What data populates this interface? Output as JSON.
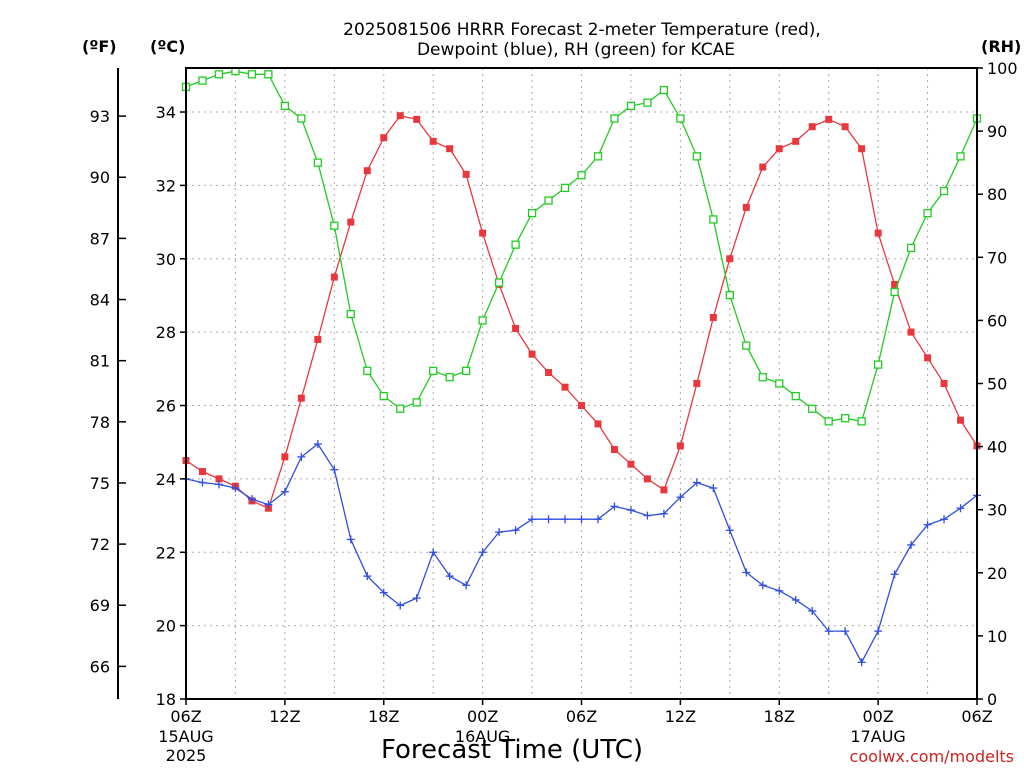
{
  "chart_data": {
    "type": "line",
    "title": [
      "2025081506 HRRR Forecast 2-meter Temperature (red),",
      "Dewpoint (blue), RH (green) for KCAE"
    ],
    "xlabel": "Forecast Time (UTC)",
    "credit": "coolwx.com/modelts",
    "units": {
      "fahrenheit": "(ºF)",
      "celsius": "(ºC)",
      "rh": "(RH)"
    },
    "x_ticks": [
      {
        "hour": 0,
        "label": "06Z",
        "sub": [
          "15AUG",
          "2025"
        ]
      },
      {
        "hour": 6,
        "label": "12Z",
        "sub": []
      },
      {
        "hour": 12,
        "label": "18Z",
        "sub": []
      },
      {
        "hour": 18,
        "label": "00Z",
        "sub": [
          "16AUG"
        ]
      },
      {
        "hour": 24,
        "label": "06Z",
        "sub": []
      },
      {
        "hour": 30,
        "label": "12Z",
        "sub": []
      },
      {
        "hour": 36,
        "label": "18Z",
        "sub": []
      },
      {
        "hour": 42,
        "label": "00Z",
        "sub": [
          "17AUG"
        ]
      },
      {
        "hour": 48,
        "label": "06Z",
        "sub": []
      }
    ],
    "xlim": [
      0,
      48
    ],
    "ylim_c": [
      18,
      35.2
    ],
    "ylim_rh": [
      0,
      100
    ],
    "celsius_ticks": [
      18,
      20,
      22,
      24,
      26,
      28,
      30,
      32,
      34
    ],
    "fahrenheit_ticks": [
      66,
      69,
      72,
      75,
      78,
      81,
      84,
      87,
      90,
      93
    ],
    "rh_ticks": [
      0,
      10,
      20,
      30,
      40,
      50,
      60,
      70,
      80,
      90,
      100
    ],
    "colors": {
      "temperature": "#e8383d",
      "dewpoint": "#2f4fe0",
      "rh": "#22cc22"
    },
    "series": [
      {
        "name": "Temperature",
        "unit": "C",
        "values": [
          24.5,
          24.2,
          24.0,
          23.8,
          23.4,
          23.2,
          24.6,
          26.2,
          27.8,
          29.5,
          31.0,
          32.4,
          33.3,
          33.9,
          33.8,
          33.2,
          33.0,
          32.3,
          30.7,
          29.3,
          28.1,
          27.4,
          26.9,
          26.5,
          26.0,
          25.5,
          24.8,
          24.4,
          24.0,
          23.7,
          24.9,
          26.6,
          28.4,
          30.0,
          31.4,
          32.5,
          33.0,
          33.2,
          33.6,
          33.8,
          33.6,
          33.0,
          30.7,
          29.3,
          28.0,
          27.3,
          26.6,
          25.6,
          24.9
        ]
      },
      {
        "name": "Dewpoint",
        "unit": "C",
        "values": [
          24.0,
          23.9,
          23.85,
          23.75,
          23.45,
          23.3,
          23.65,
          24.6,
          24.95,
          24.25,
          22.35,
          21.35,
          20.9,
          20.55,
          20.75,
          22.0,
          21.35,
          21.1,
          22.0,
          22.55,
          22.6,
          22.9,
          22.9,
          22.9,
          22.9,
          22.9,
          23.25,
          23.15,
          23.0,
          23.05,
          23.5,
          23.9,
          23.75,
          22.6,
          21.45,
          21.1,
          20.95,
          20.7,
          20.4,
          19.85,
          19.85,
          19.0,
          19.85,
          21.4,
          22.2,
          22.75,
          22.9,
          23.2,
          23.55
        ]
      },
      {
        "name": "RH",
        "unit": "%",
        "values": [
          97,
          98,
          99,
          99.5,
          99,
          99,
          94,
          92,
          85,
          75,
          61,
          52,
          48,
          46,
          47,
          52,
          51,
          52,
          60,
          66,
          72,
          77,
          79,
          81,
          83,
          86,
          92,
          94,
          94.5,
          96.5,
          92,
          86,
          76,
          64,
          56,
          51,
          50,
          48,
          46,
          44,
          44.5,
          44,
          53,
          64.5,
          71.5,
          77,
          80.5,
          86,
          92
        ]
      }
    ]
  }
}
